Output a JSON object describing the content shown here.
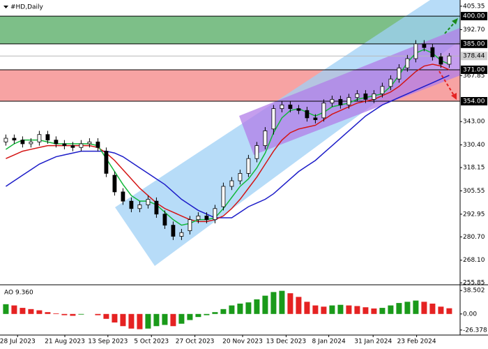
{
  "chart_data": {
    "type": "candlestick",
    "title": "#HD,Daily",
    "xlim": [
      -0.7,
      54.3
    ],
    "xticks": [
      {
        "value": 1.4,
        "label": "28 Jul 2023"
      },
      {
        "value": 7.05,
        "label": "21 Aug 2023"
      },
      {
        "value": 12.2,
        "label": "13 Sep 2023"
      },
      {
        "value": 17.4,
        "label": "5 Oct 2023"
      },
      {
        "value": 22.6,
        "label": "27 Oct 2023"
      },
      {
        "value": 28.3,
        "label": "20 Nov 2023"
      },
      {
        "value": 33.5,
        "label": "13 Dec 2023"
      },
      {
        "value": 38.6,
        "label": "8 Jan 2024"
      },
      {
        "value": 43.9,
        "label": "31 Jan 2024"
      },
      {
        "value": 49.1,
        "label": "23 Feb 2024"
      }
    ],
    "ylim": [
      254.8,
      408.7
    ],
    "yticks": [
      405.35,
      {
        "value": 392.7,
        "label": "392.70"
      },
      367.85,
      {
        "value": 343,
        "label": "343.00"
      },
      {
        "value": 330.4,
        "label": "330.40"
      },
      318.15,
      305.55,
      292.95,
      {
        "value": 280.7,
        "label": "280.70"
      },
      {
        "value": 268.1,
        "label": "268.10"
      },
      255.85
    ],
    "last_price": 378.44,
    "levels": [
      {
        "value": 400,
        "label": "400.00"
      },
      {
        "value": 385,
        "label": "385.00"
      },
      {
        "value": 371,
        "label": "371.00"
      },
      {
        "value": 354,
        "label": "354.00"
      }
    ],
    "zones": [
      {
        "from": 385,
        "to": 400,
        "color": "#7dbf88"
      },
      {
        "from": 354,
        "to": 371,
        "color": "#f7a3a3"
      }
    ],
    "up_color": "#ffffff",
    "down_color": "#000000",
    "open": [
      332,
      334,
      333,
      331,
      332,
      336,
      333,
      331,
      330,
      329,
      331,
      332,
      327,
      314,
      305,
      300,
      296,
      298,
      300,
      293,
      287,
      281,
      284,
      290,
      292,
      290,
      297,
      308,
      311,
      315,
      323,
      330,
      339,
      350,
      352,
      350,
      349,
      345,
      345,
      353,
      355,
      352,
      356,
      358,
      355,
      358,
      362,
      366,
      372,
      377,
      385,
      383,
      378,
      374
    ],
    "high": [
      336,
      336,
      335,
      334,
      338,
      338,
      335,
      333,
      332,
      333,
      334,
      334,
      329,
      316,
      307,
      302,
      300,
      303,
      302,
      295,
      289,
      285,
      292,
      294,
      294,
      298,
      310,
      313,
      317,
      325,
      332,
      340,
      352,
      354,
      354,
      352,
      351,
      347,
      355,
      357,
      357,
      358,
      360,
      360,
      360,
      364,
      368,
      374,
      379,
      387,
      387,
      385,
      380,
      380
    ],
    "low": [
      330,
      331,
      329,
      329,
      330,
      331,
      329,
      328,
      327,
      327,
      329,
      327,
      313,
      303,
      298,
      294,
      294,
      296,
      291,
      285,
      279,
      279,
      282,
      288,
      288,
      288,
      295,
      306,
      309,
      313,
      321,
      328,
      336,
      348,
      348,
      347,
      343,
      342,
      343,
      351,
      350,
      350,
      354,
      353,
      353,
      356,
      360,
      364,
      370,
      375,
      381,
      376,
      372,
      372
    ],
    "close": [
      334,
      333,
      331,
      332,
      336,
      333,
      331,
      330,
      329,
      331,
      332,
      329,
      315,
      305,
      300,
      296,
      298,
      301,
      293,
      287,
      281,
      283,
      290,
      292,
      290,
      296,
      308,
      311,
      315,
      323,
      330,
      338,
      350,
      352,
      350,
      349,
      345,
      344,
      353,
      355,
      352,
      356,
      358,
      355,
      358,
      362,
      366,
      372,
      377,
      385,
      383,
      378,
      374,
      378.44
    ],
    "series": [
      {
        "color": "#1c1cc8",
        "values": [
          308,
          311,
          314,
          317,
          320,
          322,
          324,
          325,
          326,
          327,
          327,
          327,
          327,
          326,
          324,
          321,
          318,
          315,
          312,
          309,
          305,
          301,
          298,
          295,
          293,
          291,
          291,
          291,
          294,
          297,
          299,
          301,
          304,
          308,
          312,
          316,
          319,
          322,
          326,
          330,
          334,
          338,
          342,
          346,
          349,
          352,
          354,
          356,
          358,
          360,
          362,
          364,
          366,
          368
        ]
      },
      {
        "color": "#d41414",
        "values": [
          323,
          325,
          327,
          328,
          329,
          330,
          330,
          330,
          330,
          330,
          330,
          329,
          326,
          322,
          317,
          312,
          307,
          303,
          299,
          296,
          294,
          292,
          290,
          289,
          289,
          290,
          292,
          296,
          301,
          307,
          313,
          320,
          327,
          333,
          337,
          339,
          340,
          341,
          344,
          347,
          349,
          351,
          353,
          354,
          355,
          357,
          359,
          362,
          366,
          370,
          373,
          374,
          373,
          371
        ]
      },
      {
        "color": "#12b83a",
        "values": [
          328,
          331,
          333,
          333,
          333,
          332,
          331,
          331,
          331,
          331,
          331,
          330,
          323,
          316,
          309,
          303,
          300,
          300,
          298,
          294,
          290,
          287,
          288,
          290,
          290,
          291,
          296,
          302,
          308,
          312,
          318,
          326,
          337,
          345,
          349,
          350,
          348,
          346,
          348,
          351,
          352,
          353,
          355,
          356,
          357,
          358,
          362,
          368,
          375,
          380,
          382,
          380,
          376,
          374
        ]
      }
    ],
    "ao": {
      "title": "AO 9.360",
      "ylim": [
        -34.6,
        47.9
      ],
      "yticks": [
        38.502,
        {
          "value": 0,
          "label": "0.00"
        },
        -26.378
      ],
      "up_color": "#1a9a1a",
      "down_color": "#e52222",
      "values": [
        16,
        14,
        10,
        8,
        6,
        3,
        1,
        -2,
        -3,
        -1,
        0,
        -2,
        -8,
        -14,
        -20,
        -24,
        -25,
        -24,
        -20,
        -18,
        -20,
        -16,
        -10,
        -5,
        -2,
        3,
        8,
        14,
        17,
        19,
        24,
        30,
        36,
        38,
        34,
        28,
        20,
        14,
        12,
        14,
        15,
        14,
        13,
        11,
        9,
        10,
        14,
        18,
        20,
        22,
        20,
        17,
        12,
        9.36
      ]
    }
  }
}
